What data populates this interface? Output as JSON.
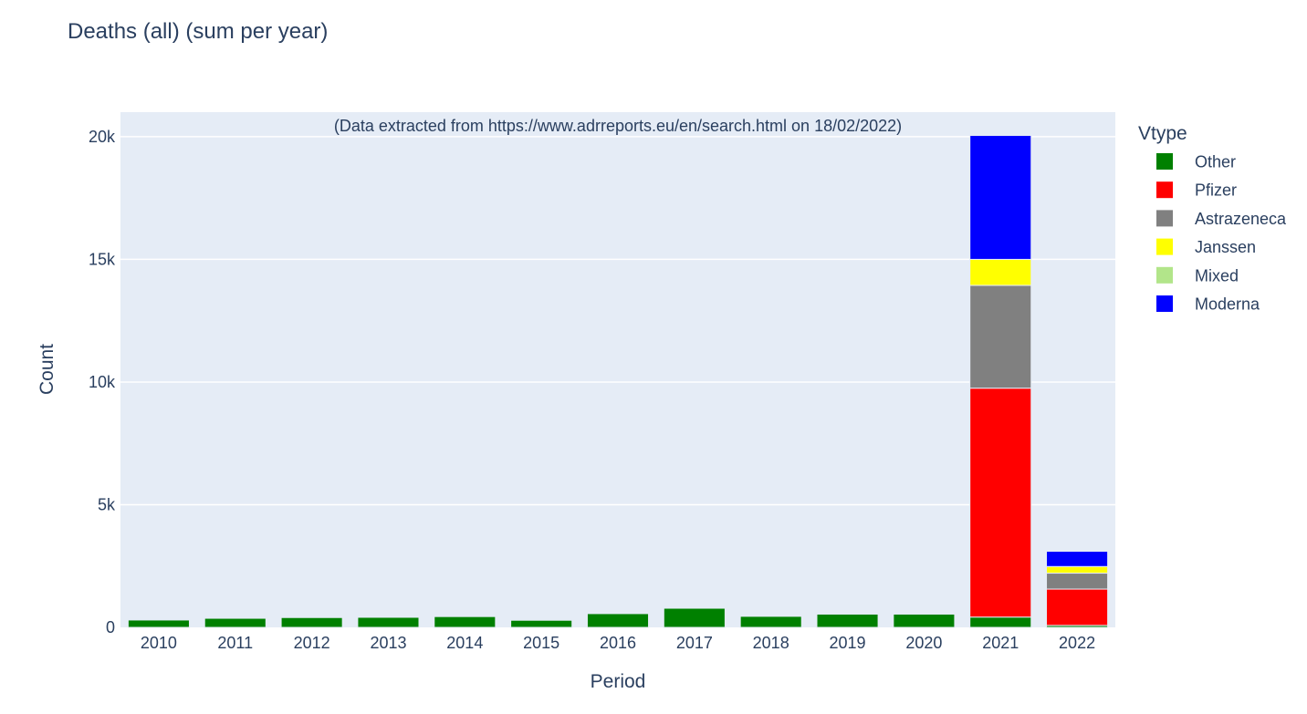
{
  "chart_data": {
    "type": "bar",
    "stacked": true,
    "title": "Deaths (all) (sum per year)",
    "annotation": "(Data extracted from https://www.adrreports.eu/en/search.html on 18/02/2022)",
    "xlabel": "Period",
    "ylabel": "Count",
    "ylim": [
      0,
      21000
    ],
    "yticks": [
      0,
      5000,
      10000,
      15000,
      20000
    ],
    "ytick_labels": [
      "0",
      "5k",
      "10k",
      "15k",
      "20k"
    ],
    "grid": true,
    "legend_title": "Vtype",
    "legend_position": "right",
    "categories": [
      "2010",
      "2011",
      "2012",
      "2013",
      "2014",
      "2015",
      "2016",
      "2017",
      "2018",
      "2019",
      "2020",
      "2021",
      "2022"
    ],
    "series": [
      {
        "name": "Other",
        "color": "#008000",
        "values": [
          300,
          370,
          400,
          410,
          440,
          290,
          560,
          780,
          450,
          540,
          540,
          420,
          80
        ]
      },
      {
        "name": "Pfizer",
        "color": "#ff0000",
        "values": [
          0,
          0,
          0,
          0,
          0,
          0,
          0,
          0,
          0,
          0,
          0,
          9330,
          1480
        ]
      },
      {
        "name": "Astrazeneca",
        "color": "#808080",
        "values": [
          0,
          0,
          0,
          0,
          0,
          0,
          0,
          0,
          0,
          0,
          0,
          4190,
          650
        ]
      },
      {
        "name": "Janssen",
        "color": "#ffff00",
        "values": [
          0,
          0,
          0,
          0,
          0,
          0,
          0,
          0,
          0,
          0,
          0,
          1060,
          270
        ]
      },
      {
        "name": "Mixed",
        "color": "#b2e58a",
        "values": [
          0,
          0,
          0,
          0,
          0,
          0,
          0,
          0,
          0,
          0,
          0,
          0,
          0
        ]
      },
      {
        "name": "Moderna",
        "color": "#0000ff",
        "values": [
          0,
          0,
          0,
          0,
          0,
          0,
          0,
          0,
          0,
          0,
          0,
          5050,
          620
        ]
      }
    ]
  },
  "colors": {
    "plot_background": "#e5ecf6",
    "gridline": "#ffffff",
    "text": "#2a3f5f"
  }
}
